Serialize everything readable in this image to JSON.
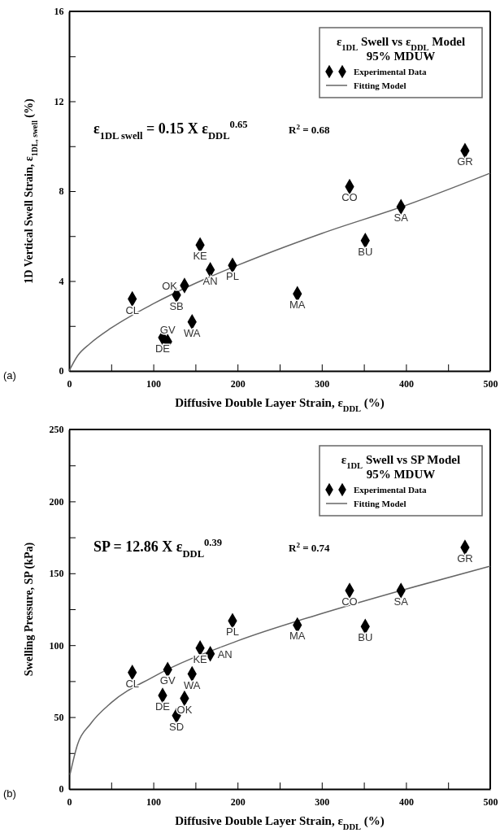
{
  "chart_data": [
    {
      "type": "scatter",
      "xlabel": "Diffusive Double Layer Strain, ε$_{DDL}$ (%)",
      "ylabel": "1D Vertical Swell Strain, ε$_{1DL, swell}$ (%)",
      "legend_title": "ε$_{1DL}$ Swell vs ε$_{DDL}$ Model\n95% MDUW",
      "legend": "top right",
      "line_style": "solid",
      "grid": false,
      "xlim": [
        0,
        500
      ],
      "xticks": [
        0,
        {
          "value": 50,
          "label": null
        },
        100,
        {
          "value": 150,
          "label": null
        },
        200,
        {
          "value": 250,
          "label": null
        },
        300,
        {
          "value": 350,
          "label": null
        },
        400,
        {
          "value": 450,
          "label": null
        },
        500
      ],
      "ylim": [
        0,
        16
      ],
      "yticks": [
        0,
        {
          "value": 2,
          "label": null
        },
        4,
        {
          "value": 6,
          "label": null
        },
        8,
        {
          "value": 10,
          "label": null
        },
        12,
        {
          "value": 14,
          "label": null
        },
        16
      ],
      "series": [
        {
          "name": "Experimental Data",
          "marker": "diamond",
          "color": "#000000",
          "x": [
            75,
            127.5,
            137,
            155.5,
            167.6,
            194,
            146,
            111,
            117,
            333,
            394,
            351.6,
            271,
            470
          ],
          "values": [
            3.2,
            3.38,
            3.8,
            5.6,
            4.5,
            4.7,
            2.18,
            1.48,
            1.3,
            8.2,
            7.3,
            5.8,
            3.43,
            9.8
          ]
        },
        {
          "name": "Fitting Model",
          "type": "line",
          "marker": "none",
          "color": "#666666",
          "x": [
            0,
            10,
            25,
            50,
            100,
            150,
            200,
            300,
            400,
            500
          ],
          "values": [
            0,
            0.67,
            1.22,
            1.91,
            2.99,
            3.9,
            4.7,
            6.12,
            7.37,
            8.8
          ]
        }
      ],
      "annotations": [
        "ε$_{1DL swell}$ = 0.15 X ε$_{DDL}$$^{0.65}$",
        "R$^{2}$ = 0.68",
        "(a)",
        {
          "text": "CL",
          "x": 75,
          "y": 3.2
        },
        {
          "text": "SB",
          "x": 127.5,
          "y": 3.38
        },
        {
          "text": "OK",
          "x": 137,
          "y": 3.8
        },
        {
          "text": "KE",
          "x": 155.5,
          "y": 5.6
        },
        {
          "text": "AN",
          "x": 167.6,
          "y": 4.5
        },
        {
          "text": "PL",
          "x": 194,
          "y": 4.7
        },
        {
          "text": "WA",
          "x": 146,
          "y": 2.18
        },
        {
          "text": "DE",
          "x": 111,
          "y": 1.48
        },
        {
          "text": "GV",
          "x": 117,
          "y": 1.3
        },
        {
          "text": "CO",
          "x": 333,
          "y": 8.2
        },
        {
          "text": "SA",
          "x": 394,
          "y": 7.3
        },
        {
          "text": "BU",
          "x": 351.6,
          "y": 5.8
        },
        {
          "text": "MA",
          "x": 271,
          "y": 3.43
        },
        {
          "text": "GR",
          "x": 470,
          "y": 9.8
        }
      ]
    },
    {
      "type": "scatter",
      "xlabel": "Diffusive Double Layer Strain, ε$_{DDL}$ (%)",
      "ylabel": "Swelling Pressure, SP (kPa)",
      "legend_title": "ε$_{1DL}$ Swell vs SP Model\n95% MDUW",
      "legend": "top right",
      "line_style": "solid",
      "grid": false,
      "xlim": [
        0,
        500
      ],
      "xticks": [
        0,
        {
          "value": 50,
          "label": null
        },
        100,
        {
          "value": 150,
          "label": null
        },
        200,
        {
          "value": 250,
          "label": null
        },
        300,
        {
          "value": 350,
          "label": null
        },
        400,
        {
          "value": 450,
          "label": null
        },
        500
      ],
      "ylim": [
        0,
        250
      ],
      "yticks": [
        0,
        {
          "value": 25,
          "label": null
        },
        50,
        {
          "value": 75,
          "label": null
        },
        100,
        {
          "value": 125,
          "label": null
        },
        150,
        {
          "value": 175,
          "label": null
        },
        200,
        {
          "value": 225,
          "label": null
        },
        250
      ],
      "series": [
        {
          "name": "Experimental Data",
          "marker": "diamond",
          "color": "#000000",
          "x": [
            75,
            117,
            111,
            137,
            127.5,
            146,
            155.5,
            167.6,
            194,
            271,
            333,
            351.6,
            394,
            470
          ],
          "values": [
            81,
            83,
            65,
            63,
            51,
            80,
            98,
            94,
            117,
            114,
            138,
            113,
            138,
            168
          ]
        },
        {
          "name": "Fitting Model",
          "type": "line",
          "marker": "none",
          "color": "#666666",
          "x": [
            1,
            10,
            25,
            50,
            100,
            200,
            300,
            400,
            500
          ],
          "values": [
            10,
            31,
            45,
            60,
            78,
            103,
            122,
            139,
            155
          ]
        }
      ],
      "annotations": [
        "SP = 12.86 X ε$_{DDL}$$^{0.39}$",
        "R$^{2}$ = 0.74",
        "(b)",
        {
          "text": "CL",
          "x": 75,
          "y": 81
        },
        {
          "text": "GV",
          "x": 117,
          "y": 83
        },
        {
          "text": "DE",
          "x": 111,
          "y": 65
        },
        {
          "text": "OK",
          "x": 137,
          "y": 63
        },
        {
          "text": "SD",
          "x": 127.5,
          "y": 51
        },
        {
          "text": "WA",
          "x": 146,
          "y": 80
        },
        {
          "text": "KE",
          "x": 155.5,
          "y": 98
        },
        {
          "text": "AN",
          "x": 167.6,
          "y": 94
        },
        {
          "text": "PL",
          "x": 194,
          "y": 117
        },
        {
          "text": "MA",
          "x": 271,
          "y": 114
        },
        {
          "text": "CO",
          "x": 333,
          "y": 138
        },
        {
          "text": "BU",
          "x": 351.6,
          "y": 113
        },
        {
          "text": "SA",
          "x": 394,
          "y": 138
        },
        {
          "text": "GR",
          "x": 470,
          "y": 168
        }
      ]
    }
  ]
}
